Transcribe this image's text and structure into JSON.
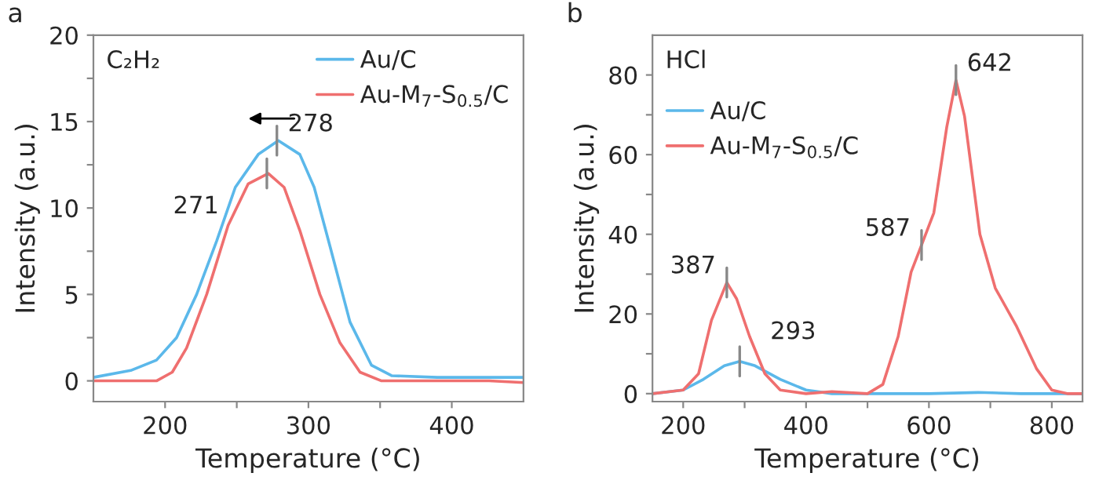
{
  "chart_data": [
    {
      "type": "line",
      "title": "a",
      "xlabel": "Temperature (°C)",
      "ylabel": "Intensity (a.u.)",
      "xlim": [
        150,
        450
      ],
      "ylim": [
        -1.2,
        20
      ],
      "xticks": [
        200,
        {
          "value": 250,
          "label": null
        },
        300,
        {
          "value": 350,
          "label": null
        },
        400
      ],
      "yticks": [
        0,
        {
          "value": 2.5,
          "label": null
        },
        5,
        {
          "value": 7.5,
          "label": null
        },
        10,
        {
          "value": 12.5,
          "label": null
        },
        15,
        {
          "value": 17.5,
          "label": null
        },
        20
      ],
      "grid": false,
      "legend": "top right",
      "annotations": [
        "C₂H₂",
        {
          "text": "278",
          "x": 278,
          "y": 13.9
        },
        {
          "text": "271",
          "x": 271,
          "y": 12
        }
      ],
      "series": [
        {
          "name": "Au/C",
          "color": "#5bb8ea",
          "x": [
            150,
            176,
            194,
            208,
            222,
            236,
            249,
            265,
            279,
            294,
            304,
            315,
            329,
            344,
            358,
            390,
            426,
            450
          ],
          "values": [
            0.2,
            0.6,
            1.2,
            2.5,
            5,
            8.1,
            11.2,
            13.1,
            13.9,
            13.1,
            11.2,
            7.8,
            3.4,
            0.9,
            0.3,
            0.2,
            0.2,
            0.2
          ]
        },
        {
          "name": "Au-M$_{7}$-S$_{0.5}$/C",
          "color": "#ef6f6f",
          "x": [
            150,
            194,
            205,
            215,
            229,
            244,
            258,
            272,
            283,
            294,
            308,
            322,
            336,
            351,
            390,
            426,
            450
          ],
          "values": [
            0,
            0,
            0.5,
            1.9,
            5,
            9,
            11.4,
            12,
            11.2,
            8.7,
            5,
            2.2,
            0.5,
            0,
            0,
            0,
            -0.1
          ]
        }
      ]
    },
    {
      "type": "line",
      "title": "b",
      "xlabel": "Temperature (°C)",
      "ylabel": "Intensity (a.u.)",
      "xlim": [
        150,
        850
      ],
      "ylim": [
        -2,
        90
      ],
      "xticks": [
        200,
        {
          "value": 300,
          "label": null
        },
        400,
        {
          "value": 500,
          "label": null
        },
        600,
        {
          "value": 700,
          "label": null
        },
        800
      ],
      "yticks": [
        0,
        {
          "value": 10,
          "label": null
        },
        20,
        {
          "value": 30,
          "label": null
        },
        40,
        {
          "value": 50,
          "label": null
        },
        60,
        {
          "value": 70,
          "label": null
        },
        80
      ],
      "grid": false,
      "legend": "upper left",
      "annotations": [
        "HCl",
        {
          "text": "387",
          "x": 271,
          "y": 27.9
        },
        {
          "text": "293",
          "x": 292,
          "y": 8.1
        },
        {
          "text": "587",
          "x": 588,
          "y": 37.3
        },
        {
          "text": "642",
          "x": 644,
          "y": 78.7
        }
      ],
      "series": [
        {
          "name": "Au/C",
          "color": "#5bb8ea",
          "x": [
            150,
            200,
            233,
            267,
            292,
            317,
            358,
            400,
            442,
            500,
            600,
            680,
            750,
            850
          ],
          "values": [
            0,
            0.9,
            3.6,
            7,
            8.1,
            7,
            3.6,
            0.9,
            0,
            0,
            0,
            0.3,
            0,
            0
          ]
        },
        {
          "name": "Au-M$_{7}$-S$_{0.5}$/C",
          "color": "#ef6f6f",
          "x": [
            150,
            200,
            225,
            246,
            271,
            287,
            308,
            333,
            358,
            400,
            442,
            500,
            525,
            550,
            571,
            588,
            608,
            629,
            644,
            658,
            683,
            708,
            742,
            775,
            800,
            825,
            850
          ],
          "values": [
            0,
            0.9,
            5,
            18.4,
            27.9,
            23.8,
            14.4,
            5,
            0.9,
            0,
            0.5,
            0,
            2.3,
            14.4,
            30.5,
            37.3,
            45.4,
            66.9,
            78.7,
            69.6,
            40,
            26.5,
            17.1,
            6.3,
            0.9,
            0,
            0
          ]
        }
      ]
    }
  ]
}
